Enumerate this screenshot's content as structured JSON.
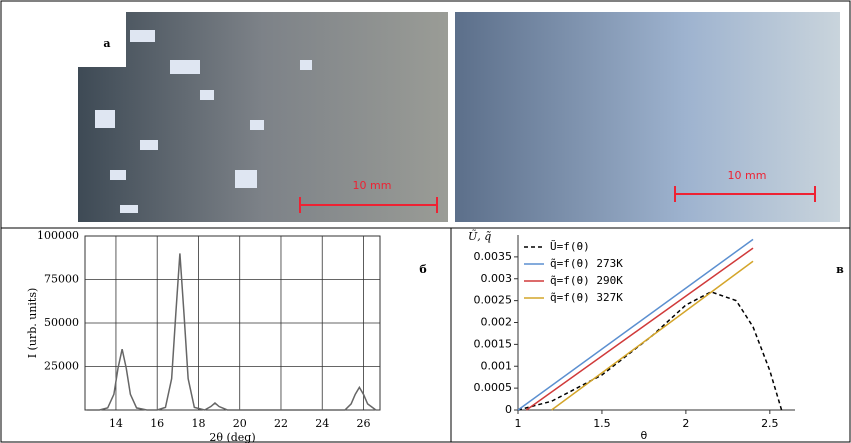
{
  "figure": {
    "labels": [
      "а",
      "б",
      "в"
    ],
    "scale_bars": [
      "10 mm",
      "10 mm"
    ]
  },
  "chart_data": [
    {
      "type": "line",
      "xlabel": "2θ (deg)",
      "ylabel": "I (urb. units)",
      "xlim": [
        12.5,
        26.8
      ],
      "ylim": [
        0,
        100000
      ],
      "xticks": [
        14,
        16,
        18,
        20,
        22,
        24,
        26
      ],
      "yticks": [
        25000,
        50000,
        75000,
        100000
      ],
      "grid": true,
      "series": [
        {
          "color": "#666666",
          "style": "solid",
          "x": [
            12.6,
            13.2,
            13.6,
            13.9,
            14.1,
            14.3,
            14.5,
            14.7,
            15.0,
            15.5,
            16.0,
            16.4,
            16.7,
            16.9,
            17.1,
            17.3,
            17.5,
            17.8,
            18.3,
            18.6,
            18.8,
            19.0,
            19.4,
            20,
            22,
            24,
            25.1,
            25.4,
            25.6,
            25.8,
            26.0,
            26.2,
            26.6
          ],
          "values": [
            0,
            0,
            1200,
            9000,
            24000,
            35000,
            24000,
            9000,
            1200,
            0,
            0,
            1500,
            18000,
            55000,
            90000,
            55000,
            18000,
            1500,
            0,
            2000,
            4000,
            2000,
            0,
            0,
            0,
            0,
            0,
            3500,
            9000,
            13000,
            9000,
            3500,
            0
          ]
        }
      ]
    },
    {
      "type": "line",
      "xlabel": "θ",
      "ylabel": "Ũ, q̃",
      "xlim": [
        1,
        2.65
      ],
      "ylim": [
        0,
        0.004
      ],
      "xticks": [
        1,
        1.5,
        2,
        2.5
      ],
      "yticks": [
        0,
        0.0005,
        0.001,
        0.0015,
        0.002,
        0.0025,
        0.003,
        0.0035
      ],
      "grid": false,
      "legend": "upper-left",
      "series": [
        {
          "name": "Ũ=f(θ)",
          "color": "#000000",
          "style": "dashed",
          "x": [
            1,
            1.2,
            1.5,
            1.8,
            2.0,
            2.15,
            2.3,
            2.4,
            2.5,
            2.57
          ],
          "values": [
            0,
            0.0002,
            0.0008,
            0.0017,
            0.0024,
            0.0027,
            0.0025,
            0.0019,
            0.0009,
            0
          ]
        },
        {
          "name": "q̃=f(θ) 273K",
          "color": "#5b8fd0",
          "style": "solid",
          "x": [
            1,
            2.4
          ],
          "values": [
            0,
            0.0039
          ]
        },
        {
          "name": "q̃=f(θ) 290K",
          "color": "#d03a3a",
          "style": "solid",
          "x": [
            1.05,
            2.4
          ],
          "values": [
            0,
            0.0037
          ]
        },
        {
          "name": "q̃=f(θ) 327K",
          "color": "#d4a52a",
          "style": "solid",
          "x": [
            1.2,
            2.4
          ],
          "values": [
            0,
            0.0034
          ]
        }
      ]
    }
  ]
}
